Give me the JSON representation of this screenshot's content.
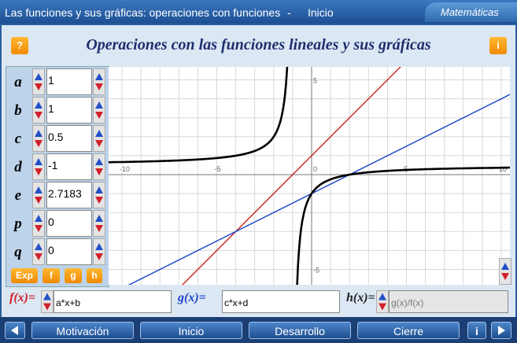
{
  "header": {
    "title": "Las funciones y sus gráficas: operaciones con funciones",
    "separator": "-",
    "section": "Inicio",
    "subject": "Matemáticas"
  },
  "banner": {
    "help": "?",
    "title": "Operaciones con las funciones lineales y sus gráficas",
    "info": "i"
  },
  "parameters": [
    {
      "label": "a",
      "value": "1"
    },
    {
      "label": "b",
      "value": "1"
    },
    {
      "label": "c",
      "value": "0.5"
    },
    {
      "label": "d",
      "value": "-1"
    },
    {
      "label": "e",
      "value": "2.7183"
    },
    {
      "label": "p",
      "value": "0"
    },
    {
      "label": "q",
      "value": "0"
    }
  ],
  "function_buttons": [
    "Exp",
    "f",
    "g",
    "h"
  ],
  "graph": {
    "x_tick_labels": [
      "-10",
      "-5",
      "0",
      "5",
      "10"
    ],
    "y_tick_labels": [
      "5",
      "-5"
    ]
  },
  "functions": [
    {
      "label": "f(x)=",
      "expression": "a*x+b"
    },
    {
      "label": "g(x)=",
      "expression": "c*x+d"
    },
    {
      "label": "h(x)=",
      "expression": "g(x)/f(x)"
    }
  ],
  "navigation": {
    "buttons": [
      "Motivación",
      "Inicio",
      "Desarrollo",
      "Cierre"
    ],
    "info": "i"
  }
}
